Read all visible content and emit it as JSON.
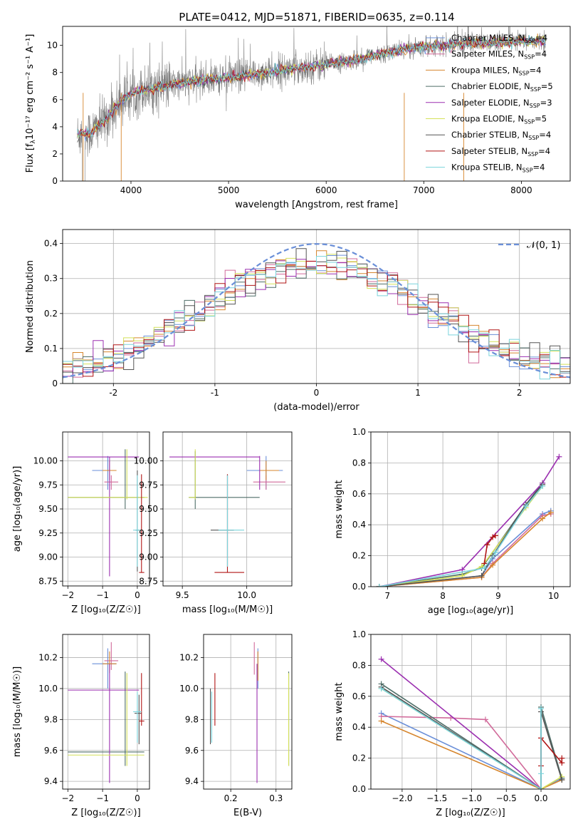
{
  "figure": {
    "title": "PLATE=0412, MJD=51871, FIBERID=0635, z=0.114",
    "series_colors": [
      "#6a8fd8",
      "#d16a9a",
      "#d6862e",
      "#4f6e68",
      "#9b2fb0",
      "#d4e05a",
      "#555555",
      "#b01515",
      "#7ad4dc"
    ]
  },
  "chart_data": [
    {
      "type": "line",
      "id": "spectrum",
      "xlabel": "wavelength [Angstrom, rest frame]",
      "ylabel_main": "Flux [f",
      "ylabel_sub": "λ",
      "ylabel_rest": "10⁻¹⁷ erg cm⁻² s⁻¹ A⁻¹]",
      "xlim": [
        3300,
        8500
      ],
      "ylim": [
        0,
        11.4
      ],
      "xticks": [
        4000,
        5000,
        6000,
        7000,
        8000
      ],
      "yticks": [
        0,
        2,
        4,
        6,
        8,
        10
      ],
      "grid": false,
      "legend_position": "right",
      "data_color": "#808080",
      "continuum": {
        "x": [
          3450,
          3600,
          3750,
          3900,
          4050,
          4200,
          4400,
          4600,
          4800,
          5000,
          5200,
          5400,
          5600,
          5800,
          6000,
          6200,
          6400,
          6600,
          6800,
          7000,
          7200,
          7400,
          7600,
          7800,
          8000,
          8250
        ],
        "y": [
          3.4,
          3.6,
          4.6,
          5.9,
          6.6,
          6.8,
          7.1,
          7.3,
          7.5,
          7.6,
          7.8,
          8.0,
          8.2,
          8.4,
          8.6,
          8.8,
          9.1,
          9.4,
          9.7,
          9.9,
          10.0,
          10.1,
          10.2,
          10.2,
          10.3,
          10.3
        ]
      },
      "legend": [
        {
          "label": "Chabrier MILES, N",
          "sub": "SSP",
          "suffix": "=4"
        },
        {
          "label": "Salpeter MILES, N",
          "sub": "SSP",
          "suffix": "=4"
        },
        {
          "label": "Kroupa MILES, N",
          "sub": "SSP",
          "suffix": "=4"
        },
        {
          "label": "Chabrier ELODIE, N",
          "sub": "SSP",
          "suffix": "=5"
        },
        {
          "label": "Salpeter ELODIE, N",
          "sub": "SSP",
          "suffix": "=3"
        },
        {
          "label": "Kroupa ELODIE, N",
          "sub": "SSP",
          "suffix": "=5"
        },
        {
          "label": "Chabrier STELIB, N",
          "sub": "SSP",
          "suffix": "=4"
        },
        {
          "label": "Salpeter STELIB, N",
          "sub": "SSP",
          "suffix": "=4"
        },
        {
          "label": "Kroupa STELIB, N",
          "sub": "SSP",
          "suffix": "=4"
        }
      ]
    },
    {
      "type": "histogram",
      "id": "residuals",
      "xlabel": "(data-model)/error",
      "ylabel": "Normed distribution",
      "xlim": [
        -2.5,
        2.5
      ],
      "ylim": [
        0,
        0.44
      ],
      "xticks": [
        -2,
        -1,
        0,
        1,
        2
      ],
      "yticks": [
        0.0,
        0.1,
        0.2,
        0.3,
        0.4
      ],
      "grid": true,
      "bin_width": 0.1,
      "gaussian_label": "𝒩(0, 1)",
      "gaussian_color": "#6a8fd8"
    },
    {
      "type": "errorbar",
      "id": "age-vs-Z",
      "xlabel": "Z [log₁₀(Z/Z☉)]",
      "ylabel": "age  [log₁₀(age/yr)]",
      "xlim": [
        -2.15,
        0.35
      ],
      "ylim": [
        8.7,
        10.3
      ],
      "xticks": [
        -2,
        -1,
        0
      ],
      "yticks": [
        8.75,
        9.0,
        9.25,
        9.5,
        9.75,
        10.0
      ],
      "xtick_labels": [
        "−2",
        "−1",
        "0"
      ],
      "ytick_labels": [
        "8.75",
        "9.00",
        "9.25",
        "9.50",
        "9.75",
        "10.00"
      ],
      "grid": true,
      "points": [
        {
          "c": 0,
          "x": -0.85,
          "y": 9.9,
          "xl": -1.3,
          "xh": -0.7,
          "yl": 9.7,
          "yh": 10.05
        },
        {
          "c": 1,
          "x": -0.75,
          "y": 9.78,
          "xl": -0.95,
          "xh": -0.55,
          "yl": 9.7,
          "yh": 9.85
        },
        {
          "c": 2,
          "x": -0.8,
          "y": 9.9,
          "xl": -1.0,
          "xh": -0.6,
          "yl": 9.8,
          "yh": 10.0
        },
        {
          "c": 3,
          "x": -0.35,
          "y": 9.62,
          "xl": -2.0,
          "xh": 0.2,
          "yl": 9.5,
          "yh": 10.12
        },
        {
          "c": 4,
          "x": -0.8,
          "y": 10.04,
          "xl": -2.0,
          "xh": 0.05,
          "yl": 8.8,
          "yh": 10.04
        },
        {
          "c": 5,
          "x": -0.3,
          "y": 9.62,
          "xl": -2.0,
          "xh": 0.3,
          "yl": 9.6,
          "yh": 10.12
        },
        {
          "c": 6,
          "x": 0.0,
          "y": 9.28,
          "xl": -0.05,
          "xh": 0.05,
          "yl": 8.85,
          "yh": 9.9
        },
        {
          "c": 7,
          "x": 0.12,
          "y": 8.84,
          "xl": 0.05,
          "xh": 0.2,
          "yl": 8.84,
          "yh": 9.86
        },
        {
          "c": 8,
          "x": 0.0,
          "y": 9.28,
          "xl": -0.12,
          "xh": 0.12,
          "yl": 8.9,
          "yh": 9.85
        }
      ]
    },
    {
      "type": "errorbar",
      "id": "age-vs-mass",
      "xlabel": "mass [log₁₀(M/M☉)]",
      "ylabel": "",
      "xlim": [
        9.35,
        10.35
      ],
      "ylim": [
        8.7,
        10.3
      ],
      "xticks": [
        9.5,
        10.0
      ],
      "yticks": [
        8.75,
        9.0,
        9.25,
        9.5,
        9.75,
        10.0
      ],
      "xtick_labels": [
        "9.5",
        "10.0"
      ],
      "ytick_labels": [
        "8.75",
        "9.00",
        "9.25",
        "9.50",
        "9.75",
        "10.00"
      ],
      "grid": true,
      "points": [
        {
          "c": 0,
          "x": 10.15,
          "y": 9.9,
          "xl": 10.0,
          "xh": 10.28,
          "yl": 9.7,
          "yh": 10.05
        },
        {
          "c": 1,
          "x": 10.15,
          "y": 9.78,
          "xl": 10.05,
          "xh": 10.3,
          "yl": 9.7,
          "yh": 9.85
        },
        {
          "c": 2,
          "x": 10.15,
          "y": 9.9,
          "xl": 10.1,
          "xh": 10.25,
          "yl": 9.8,
          "yh": 10.0
        },
        {
          "c": 3,
          "x": 9.6,
          "y": 9.62,
          "xl": 9.55,
          "xh": 10.1,
          "yl": 9.5,
          "yh": 10.1
        },
        {
          "c": 4,
          "x": 10.1,
          "y": 10.04,
          "xl": 9.4,
          "xh": 10.1,
          "yl": 9.7,
          "yh": 10.05
        },
        {
          "c": 5,
          "x": 9.6,
          "y": 9.62,
          "xl": 9.55,
          "xh": 9.6,
          "yl": 9.6,
          "yh": 10.12
        },
        {
          "c": 6,
          "x": 9.85,
          "y": 9.28,
          "xl": 9.72,
          "xh": 9.9,
          "yl": 8.9,
          "yh": 9.86
        },
        {
          "c": 7,
          "x": 9.85,
          "y": 8.84,
          "xl": 9.75,
          "xh": 9.98,
          "yl": 8.84,
          "yh": 9.86
        },
        {
          "c": 8,
          "x": 9.85,
          "y": 9.28,
          "xl": 9.78,
          "xh": 9.98,
          "yl": 8.9,
          "yh": 9.85
        }
      ]
    },
    {
      "type": "line",
      "id": "weight-vs-age",
      "xlabel": "age  [log₁₀(age/yr)]",
      "ylabel": "mass weight",
      "xlim": [
        6.7,
        10.3
      ],
      "ylim": [
        0,
        1.0
      ],
      "xticks": [
        7,
        8,
        9,
        10
      ],
      "yticks": [
        0.0,
        0.2,
        0.4,
        0.6,
        0.8,
        1.0
      ],
      "xtick_labels": [
        "7",
        "8",
        "9",
        "10"
      ],
      "ytick_labels": [
        "0.0",
        "0.2",
        "0.4",
        "0.6",
        "0.8",
        "1.0"
      ],
      "grid": true,
      "series": [
        {
          "c": 0,
          "x": [
            6.85,
            8.7,
            8.9,
            9.8,
            9.95
          ],
          "y": [
            0.0,
            0.07,
            0.18,
            0.47,
            0.49
          ]
        },
        {
          "c": 1,
          "x": [
            6.85,
            8.7,
            8.9,
            9.8,
            9.95
          ],
          "y": [
            0.0,
            0.06,
            0.15,
            0.46,
            0.47
          ]
        },
        {
          "c": 2,
          "x": [
            6.85,
            8.7,
            8.9,
            9.8,
            9.95
          ],
          "y": [
            0.0,
            0.06,
            0.14,
            0.44,
            0.48
          ]
        },
        {
          "c": 3,
          "x": [
            6.85,
            8.35,
            8.7,
            9.5,
            9.8
          ],
          "y": [
            0.0,
            0.08,
            0.12,
            0.53,
            0.67
          ]
        },
        {
          "c": 4,
          "x": [
            6.85,
            8.35,
            9.8,
            10.1
          ],
          "y": [
            0.0,
            0.11,
            0.67,
            0.84
          ]
        },
        {
          "c": 5,
          "x": [
            6.85,
            8.35,
            8.7,
            9.5,
            9.8
          ],
          "y": [
            0.0,
            0.07,
            0.13,
            0.51,
            0.65
          ]
        },
        {
          "c": 6,
          "x": [
            6.85,
            8.7,
            8.9,
            9.5,
            9.8
          ],
          "y": [
            0.0,
            0.07,
            0.2,
            0.53,
            0.66
          ]
        },
        {
          "c": 7,
          "x": [
            8.75,
            8.8,
            8.9,
            8.95
          ],
          "y": [
            0.15,
            0.27,
            0.32,
            0.33
          ]
        },
        {
          "c": 8,
          "x": [
            6.85,
            8.75,
            8.95,
            9.5,
            9.8
          ],
          "y": [
            0.0,
            0.12,
            0.22,
            0.52,
            0.65
          ]
        }
      ]
    },
    {
      "type": "errorbar",
      "id": "mass-vs-Z",
      "xlabel": "Z [log₁₀(Z/Z☉)]",
      "ylabel": "mass [log₁₀(M/M☉)]",
      "xlim": [
        -2.15,
        0.35
      ],
      "ylim": [
        9.35,
        10.35
      ],
      "xticks": [
        -2,
        -1,
        0
      ],
      "yticks": [
        9.4,
        9.6,
        9.8,
        10.0,
        10.2
      ],
      "xtick_labels": [
        "−2",
        "−1",
        "0"
      ],
      "ytick_labels": [
        "9.4",
        "9.6",
        "9.8",
        "10.0",
        "10.2"
      ],
      "grid": true,
      "points": [
        {
          "c": 0,
          "x": -0.85,
          "y": 10.16,
          "xl": -1.3,
          "xh": -0.6,
          "yl": 10.0,
          "yh": 10.26
        },
        {
          "c": 1,
          "x": -0.75,
          "y": 10.18,
          "xl": -0.95,
          "xh": -0.55,
          "yl": 10.12,
          "yh": 10.3
        },
        {
          "c": 2,
          "x": -0.8,
          "y": 10.16,
          "xl": -1.0,
          "xh": -0.6,
          "yl": 10.1,
          "yh": 10.24
        },
        {
          "c": 3,
          "x": -0.35,
          "y": 9.59,
          "xl": -2.0,
          "xh": 0.2,
          "yl": 9.5,
          "yh": 10.11
        },
        {
          "c": 4,
          "x": -0.8,
          "y": 9.99,
          "xl": -2.0,
          "xh": 0.05,
          "yl": 9.39,
          "yh": 10.16
        },
        {
          "c": 5,
          "x": -0.3,
          "y": 9.57,
          "xl": -2.0,
          "xh": 0.2,
          "yl": 9.5,
          "yh": 10.1
        },
        {
          "c": 6,
          "x": 0.05,
          "y": 9.84,
          "xl": -0.08,
          "xh": 0.12,
          "yl": 9.64,
          "yh": 9.96
        },
        {
          "c": 7,
          "x": 0.12,
          "y": 9.79,
          "xl": 0.05,
          "xh": 0.2,
          "yl": 9.76,
          "yh": 10.1
        },
        {
          "c": 8,
          "x": 0.0,
          "y": 9.85,
          "xl": -0.12,
          "xh": 0.12,
          "yl": 9.65,
          "yh": 9.98
        }
      ]
    },
    {
      "type": "errorbar",
      "id": "mass-vs-EBV",
      "xlabel": "E(B-V)",
      "ylabel": "",
      "xlim": [
        0.14,
        0.335
      ],
      "ylim": [
        9.35,
        10.35
      ],
      "xticks": [
        0.2,
        0.3
      ],
      "yticks": [
        9.4,
        9.6,
        9.8,
        10.0,
        10.2
      ],
      "xtick_labels": [
        "0.2",
        "0.3"
      ],
      "ytick_labels": [
        "9.4",
        "9.6",
        "9.8",
        "10.0",
        "10.2"
      ],
      "grid": true,
      "points": [
        {
          "c": 0,
          "x": 0.26,
          "y": 10.12,
          "xl": 0.26,
          "xh": 0.26,
          "yl": 10.0,
          "yh": 10.26
        },
        {
          "c": 1,
          "x": 0.252,
          "y": 10.2,
          "xl": 0.252,
          "xh": 0.252,
          "yl": 10.09,
          "yh": 10.3
        },
        {
          "c": 2,
          "x": 0.26,
          "y": 10.15,
          "xl": 0.26,
          "xh": 0.26,
          "yl": 10.05,
          "yh": 10.24
        },
        {
          "c": 3,
          "x": 0.328,
          "y": 9.5,
          "xl": 0.328,
          "xh": 0.328,
          "yl": 9.5,
          "yh": 10.11
        },
        {
          "c": 4,
          "x": 0.258,
          "y": 9.39,
          "xl": 0.258,
          "xh": 0.258,
          "yl": 9.39,
          "yh": 10.16
        },
        {
          "c": 5,
          "x": 0.328,
          "y": 9.5,
          "xl": 0.328,
          "xh": 0.328,
          "yl": 9.5,
          "yh": 10.1
        },
        {
          "c": 6,
          "x": 0.155,
          "y": 9.64,
          "xl": 0.155,
          "xh": 0.155,
          "yl": 9.64,
          "yh": 10.0
        },
        {
          "c": 7,
          "x": 0.165,
          "y": 9.76,
          "xl": 0.165,
          "xh": 0.165,
          "yl": 9.76,
          "yh": 10.1
        },
        {
          "c": 8,
          "x": 0.158,
          "y": 9.65,
          "xl": 0.158,
          "xh": 0.158,
          "yl": 9.65,
          "yh": 9.98
        }
      ]
    },
    {
      "type": "line",
      "id": "weight-vs-Z",
      "xlabel": "Z [log₁₀(Z/Z☉)]",
      "ylabel": "mass weight",
      "xlim": [
        -2.45,
        0.42
      ],
      "ylim": [
        0,
        1.0
      ],
      "xticks": [
        -2.0,
        -1.5,
        -1.0,
        -0.5,
        0.0
      ],
      "yticks": [
        0.0,
        0.2,
        0.4,
        0.6,
        0.8,
        1.0
      ],
      "xtick_labels": [
        "−2.0",
        "−1.5",
        "−1.0",
        "−0.5",
        "0.0"
      ],
      "ytick_labels": [
        "0.0",
        "0.2",
        "0.4",
        "0.6",
        "0.8",
        "1.0"
      ],
      "grid": true,
      "series": [
        {
          "c": 0,
          "x": [
            -2.3,
            0.0,
            0.3
          ],
          "y": [
            0.49,
            0.0,
            0.07
          ]
        },
        {
          "c": 1,
          "x": [
            -2.3,
            -1.3,
            -0.8,
            0.0
          ],
          "y": [
            0.47,
            0.46,
            0.45,
            0.0
          ]
        },
        {
          "c": 2,
          "x": [
            -2.3,
            0.0,
            0.3
          ],
          "y": [
            0.44,
            0.0,
            0.06
          ]
        },
        {
          "c": 3,
          "x": [
            -2.3,
            0.0,
            0.0,
            0.3
          ],
          "y": [
            0.68,
            0.0,
            0.53,
            0.07
          ]
        },
        {
          "c": 4,
          "x": [
            -2.3,
            0.0
          ],
          "y": [
            0.84,
            0.0
          ]
        },
        {
          "c": 5,
          "x": [
            -2.3,
            0.0,
            0.3
          ],
          "y": [
            0.65,
            0.0,
            0.08
          ]
        },
        {
          "c": 6,
          "x": [
            -2.3,
            0.0,
            0.0,
            0.3
          ],
          "y": [
            0.66,
            0.0,
            0.5,
            0.06
          ]
        },
        {
          "c": 7,
          "x": [
            0.0,
            0.0,
            0.3,
            0.3
          ],
          "y": [
            0.15,
            0.33,
            0.17,
            0.2
          ]
        },
        {
          "c": 8,
          "x": [
            -2.3,
            0.0,
            0.0,
            0.0
          ],
          "y": [
            0.65,
            0.0,
            0.52,
            0.1
          ]
        }
      ]
    }
  ]
}
